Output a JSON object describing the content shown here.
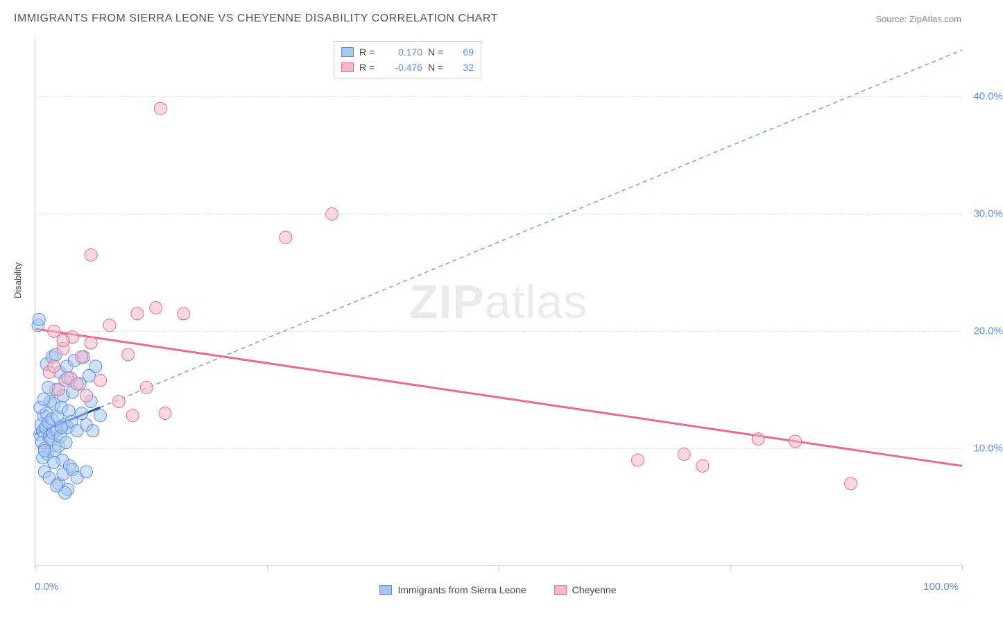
{
  "title": "IMMIGRANTS FROM SIERRA LEONE VS CHEYENNE DISABILITY CORRELATION CHART",
  "source": "Source: ZipAtlas.com",
  "watermark_bold": "ZIP",
  "watermark_light": "atlas",
  "ylabel": "Disability",
  "chart": {
    "type": "scatter",
    "xlim": [
      0,
      100
    ],
    "ylim": [
      0,
      45
    ],
    "ytick_values": [
      10,
      20,
      30,
      40
    ],
    "ytick_labels": [
      "10.0%",
      "20.0%",
      "30.0%",
      "40.0%"
    ],
    "xtick_positions": [
      0,
      25,
      50,
      75,
      100
    ],
    "xtick_min_label": "0.0%",
    "xtick_max_label": "100.0%",
    "grid_color": "#dddddd",
    "axis_color": "#cccccc",
    "background_color": "#ffffff",
    "series": [
      {
        "id": "sierra_leone",
        "label": "Immigrants from Sierra Leone",
        "r_label": "R =",
        "r_value": "0.170",
        "n_label": "N =",
        "n_value": "69",
        "marker_fill": "#a9c6ef",
        "marker_stroke": "#5b8def",
        "marker_fill_opacity": 0.55,
        "marker_radius": 9,
        "trend_color": "#1f4e9c",
        "trend_dash": "none",
        "trend_width": 3,
        "trend_extrap_color": "#6fa0e8",
        "trend_extrap_dash": "6,5",
        "trend_extrap_width": 1.5,
        "trend": {
          "x1": 0,
          "y1": 11.2,
          "x2": 7,
          "y2": 13.5
        },
        "trend_extrap": {
          "x1": 7,
          "y1": 13.5,
          "x2": 100,
          "y2": 44.0
        },
        "points": [
          [
            0.5,
            11.2
          ],
          [
            0.6,
            12.0
          ],
          [
            0.7,
            10.5
          ],
          [
            0.8,
            11.5
          ],
          [
            0.9,
            12.8
          ],
          [
            1.0,
            10.0
          ],
          [
            1.1,
            11.8
          ],
          [
            1.2,
            13.0
          ],
          [
            1.3,
            9.5
          ],
          [
            1.4,
            12.2
          ],
          [
            1.5,
            11.0
          ],
          [
            1.6,
            14.0
          ],
          [
            1.7,
            10.8
          ],
          [
            1.8,
            12.5
          ],
          [
            1.9,
            11.3
          ],
          [
            2.0,
            13.8
          ],
          [
            2.1,
            9.8
          ],
          [
            2.2,
            15.0
          ],
          [
            2.3,
            11.5
          ],
          [
            2.4,
            12.7
          ],
          [
            2.5,
            10.2
          ],
          [
            2.6,
            16.5
          ],
          [
            2.7,
            11.0
          ],
          [
            2.8,
            13.5
          ],
          [
            2.9,
            9.0
          ],
          [
            3.0,
            14.5
          ],
          [
            3.1,
            12.0
          ],
          [
            3.2,
            15.8
          ],
          [
            3.3,
            10.5
          ],
          [
            3.4,
            17.0
          ],
          [
            3.5,
            11.8
          ],
          [
            3.6,
            13.2
          ],
          [
            3.7,
            8.5
          ],
          [
            3.8,
            16.0
          ],
          [
            3.9,
            12.3
          ],
          [
            4.0,
            14.8
          ],
          [
            4.2,
            17.5
          ],
          [
            4.5,
            11.5
          ],
          [
            4.8,
            15.5
          ],
          [
            5.0,
            13.0
          ],
          [
            5.2,
            17.8
          ],
          [
            5.5,
            12.0
          ],
          [
            5.8,
            16.2
          ],
          [
            6.0,
            14.0
          ],
          [
            6.5,
            17.0
          ],
          [
            7.0,
            12.8
          ],
          [
            1.0,
            8.0
          ],
          [
            1.5,
            7.5
          ],
          [
            2.0,
            8.8
          ],
          [
            2.5,
            7.0
          ],
          [
            3.0,
            7.8
          ],
          [
            3.5,
            6.5
          ],
          [
            4.0,
            8.2
          ],
          [
            1.2,
            17.2
          ],
          [
            1.8,
            17.8
          ],
          [
            2.2,
            18.0
          ],
          [
            0.3,
            20.5
          ],
          [
            0.4,
            21.0
          ],
          [
            0.8,
            9.2
          ],
          [
            1.0,
            9.8
          ],
          [
            2.3,
            6.8
          ],
          [
            3.2,
            6.2
          ],
          [
            4.5,
            7.5
          ],
          [
            5.5,
            8.0
          ],
          [
            6.2,
            11.5
          ],
          [
            0.5,
            13.5
          ],
          [
            0.9,
            14.2
          ],
          [
            1.4,
            15.2
          ],
          [
            2.8,
            11.8
          ]
        ]
      },
      {
        "id": "cheyenne",
        "label": "Cheyenne",
        "r_label": "R =",
        "r_value": "-0.476",
        "n_label": "N =",
        "n_value": "32",
        "marker_fill": "#f5b8c9",
        "marker_stroke": "#e86b8f",
        "marker_fill_opacity": 0.55,
        "marker_radius": 9,
        "trend_color": "#e86b8f",
        "trend_dash": "none",
        "trend_width": 3,
        "trend": {
          "x1": 0,
          "y1": 20.2,
          "x2": 100,
          "y2": 8.5
        },
        "points": [
          [
            1.5,
            16.5
          ],
          [
            2.0,
            17.0
          ],
          [
            2.5,
            15.0
          ],
          [
            3.0,
            18.5
          ],
          [
            3.5,
            16.0
          ],
          [
            4.0,
            19.5
          ],
          [
            4.5,
            15.5
          ],
          [
            5.0,
            17.8
          ],
          [
            5.5,
            14.5
          ],
          [
            6.0,
            19.0
          ],
          [
            7.0,
            15.8
          ],
          [
            8.0,
            20.5
          ],
          [
            9.0,
            14.0
          ],
          [
            10.0,
            18.0
          ],
          [
            11.0,
            21.5
          ],
          [
            12.0,
            15.2
          ],
          [
            13.0,
            22.0
          ],
          [
            6.0,
            26.5
          ],
          [
            13.5,
            39.0
          ],
          [
            16.0,
            21.5
          ],
          [
            27.0,
            28.0
          ],
          [
            32.0,
            30.0
          ],
          [
            10.5,
            12.8
          ],
          [
            14.0,
            13.0
          ],
          [
            65.0,
            9.0
          ],
          [
            70.0,
            9.5
          ],
          [
            72.0,
            8.5
          ],
          [
            78.0,
            10.8
          ],
          [
            82.0,
            10.6
          ],
          [
            88.0,
            7.0
          ],
          [
            2.0,
            20.0
          ],
          [
            3.0,
            19.2
          ]
        ]
      }
    ]
  }
}
